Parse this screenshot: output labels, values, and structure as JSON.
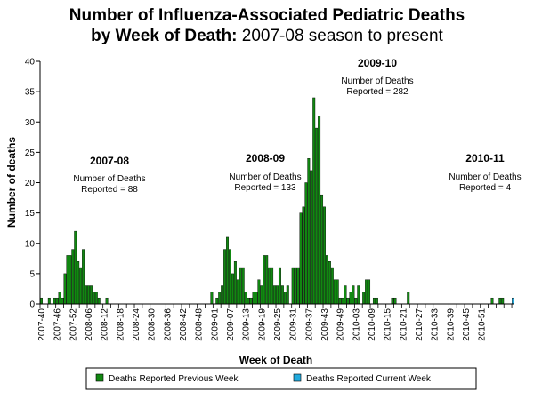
{
  "title": {
    "line1": "Number of Influenza-Associated Pediatric Deaths",
    "line2_bold": "by Week of Death:",
    "line2_rest": " 2007-08 season to present"
  },
  "colors": {
    "previous": "#118811",
    "current": "#22aadd",
    "axis": "#000000"
  },
  "chart_data": {
    "type": "bar",
    "title": "Number of Influenza-Associated Pediatric Deaths by Week of Death: 2007-08 season to present",
    "xlabel": "Week of Death",
    "ylabel": "Number of deaths",
    "ylim": [
      0,
      40
    ],
    "yticks": [
      0,
      5,
      10,
      15,
      20,
      25,
      30,
      35,
      40
    ],
    "grid": false,
    "legend_position": "bottom",
    "start_week": "2007-40",
    "categories_note": "one bar per week, weeks 2007-40 through 2010-52",
    "xtick_labels": [
      "2007-40",
      "2007-46",
      "2007-52",
      "2008-06",
      "2008-12",
      "2008-18",
      "2008-24",
      "2008-30",
      "2008-36",
      "2008-42",
      "2008-48",
      "2009-01",
      "2009-07",
      "2009-13",
      "2009-19",
      "2009-25",
      "2009-31",
      "2009-37",
      "2009-43",
      "2009-49",
      "2010-03",
      "2010-09",
      "2010-15",
      "2010-21",
      "2010-27",
      "2010-33",
      "2010-39",
      "2010-45",
      "2010-51"
    ],
    "series": [
      {
        "name": "Deaths Reported Previous Week",
        "color": "#118811",
        "values": [
          1,
          0,
          0,
          1,
          0,
          1,
          1,
          2,
          1,
          5,
          8,
          8,
          9,
          12,
          7,
          6,
          9,
          3,
          3,
          3,
          2,
          2,
          1,
          0,
          0,
          1,
          0,
          0,
          0,
          0,
          0,
          0,
          0,
          0,
          0,
          0,
          0,
          0,
          0,
          0,
          0,
          0,
          0,
          0,
          0,
          0,
          0,
          0,
          0,
          0,
          0,
          0,
          0,
          0,
          0,
          0,
          0,
          0,
          0,
          0,
          0,
          0,
          0,
          0,
          0,
          2,
          0,
          1,
          2,
          3,
          9,
          11,
          9,
          5,
          7,
          4,
          6,
          6,
          2,
          1,
          1,
          2,
          2,
          4,
          3,
          8,
          8,
          6,
          6,
          3,
          3,
          6,
          3,
          2,
          3,
          0,
          6,
          6,
          6,
          15,
          16,
          20,
          24,
          22,
          34,
          29,
          31,
          18,
          16,
          8,
          7,
          6,
          4,
          4,
          1,
          1,
          3,
          1,
          2,
          3,
          1,
          3,
          0,
          2,
          4,
          4,
          0,
          1,
          1,
          0,
          0,
          0,
          0,
          0,
          1,
          1,
          0,
          0,
          0,
          0,
          2,
          0,
          0,
          0,
          0,
          0,
          0,
          0,
          0,
          0,
          0,
          0,
          0,
          0,
          0,
          0,
          0,
          0,
          0,
          0,
          0,
          0,
          0,
          0,
          0,
          0,
          0,
          0,
          0,
          0,
          0,
          0,
          1,
          0,
          0,
          1,
          1,
          0,
          0,
          0,
          0
        ]
      },
      {
        "name": "Deaths Reported Current Week",
        "color": "#22aadd",
        "values": [
          0,
          0,
          0,
          0,
          0,
          0,
          0,
          0,
          0,
          0,
          0,
          0,
          0,
          0,
          0,
          0,
          0,
          0,
          0,
          0,
          0,
          0,
          0,
          0,
          0,
          0,
          0,
          0,
          0,
          0,
          0,
          0,
          0,
          0,
          0,
          0,
          0,
          0,
          0,
          0,
          0,
          0,
          0,
          0,
          0,
          0,
          0,
          0,
          0,
          0,
          0,
          0,
          0,
          0,
          0,
          0,
          0,
          0,
          0,
          0,
          0,
          0,
          0,
          0,
          0,
          0,
          0,
          0,
          0,
          0,
          0,
          0,
          0,
          0,
          0,
          0,
          0,
          0,
          0,
          0,
          0,
          0,
          0,
          0,
          0,
          0,
          0,
          0,
          0,
          0,
          0,
          0,
          0,
          0,
          0,
          0,
          0,
          0,
          0,
          0,
          0,
          0,
          0,
          0,
          0,
          0,
          0,
          0,
          0,
          0,
          0,
          0,
          0,
          0,
          0,
          0,
          0,
          0,
          0,
          0,
          0,
          0,
          0,
          0,
          0,
          0,
          0,
          0,
          0,
          0,
          0,
          0,
          0,
          0,
          0,
          0,
          0,
          0,
          0,
          0,
          0,
          0,
          0,
          0,
          0,
          0,
          0,
          0,
          0,
          0,
          0,
          0,
          0,
          0,
          0,
          0,
          0,
          0,
          0,
          0,
          0,
          0,
          0,
          0,
          0,
          0,
          0,
          0,
          0,
          0,
          0,
          0,
          0,
          0,
          0,
          0,
          0,
          0,
          0,
          0,
          1
        ]
      }
    ],
    "annotations": [
      {
        "season": "2007-08",
        "line1": "Number of Deaths",
        "line2": "Reported = 88"
      },
      {
        "season": "2008-09",
        "line1": "Number of Deaths",
        "line2": "Reported = 133"
      },
      {
        "season": "2009-10",
        "line1": "Number of Deaths",
        "line2": "Reported = 282"
      },
      {
        "season": "2010-11",
        "line1": "Number of Deaths",
        "line2": "Reported = 4"
      }
    ]
  }
}
